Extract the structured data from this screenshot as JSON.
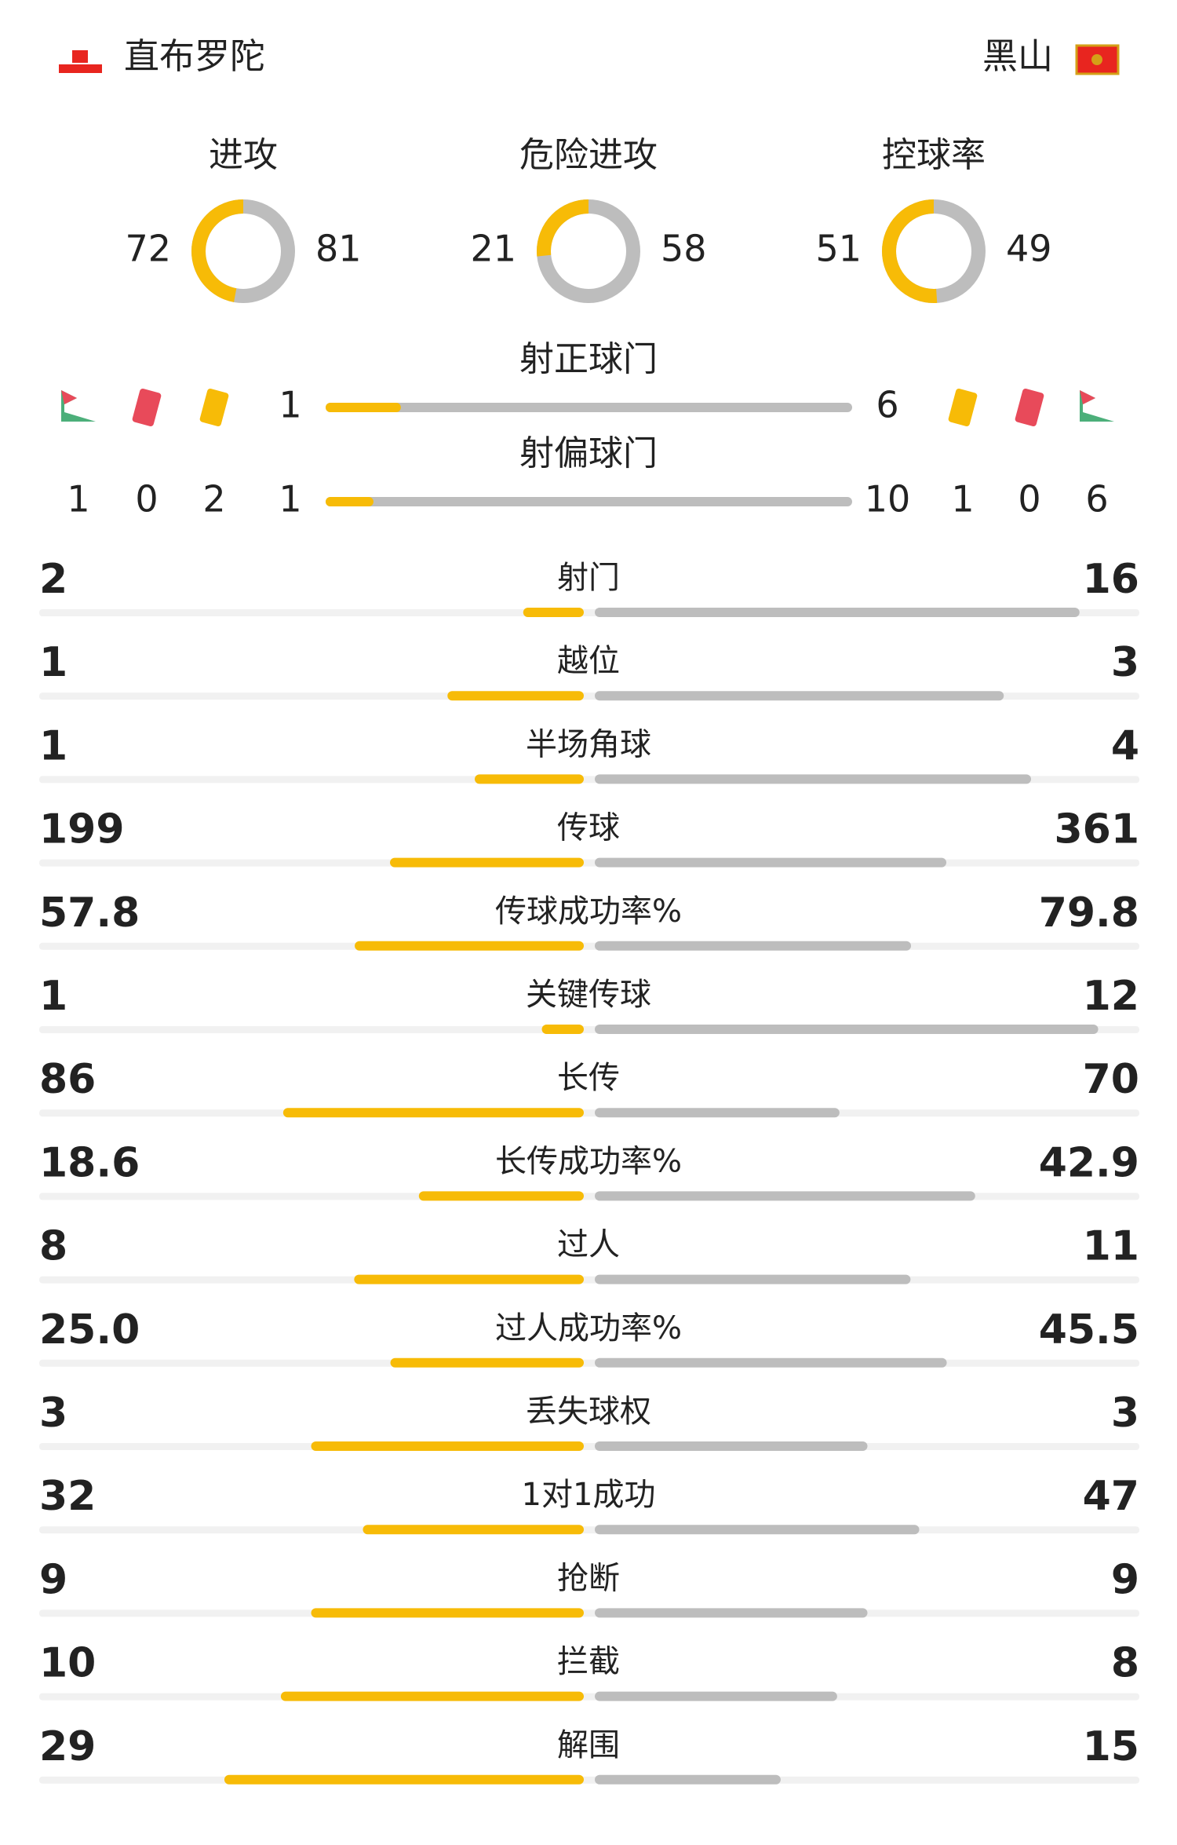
{
  "header": {
    "home_team": "直布罗陀",
    "away_team": "黑山"
  },
  "donuts": [
    {
      "label": "进攻",
      "home": 72,
      "away": 81
    },
    {
      "label": "危险进攻",
      "home": 21,
      "away": 58
    },
    {
      "label": "控球率",
      "home": 51,
      "away": 49
    }
  ],
  "shots": [
    {
      "label": "射正球门",
      "home": 1,
      "away": 6
    },
    {
      "label": "射偏球门",
      "home": 1,
      "away": 10
    }
  ],
  "events": {
    "home": {
      "corners": 1,
      "red": 0,
      "yellow": 2
    },
    "away": {
      "yellow": 1,
      "red": 0,
      "corners": 6
    }
  },
  "rows": [
    {
      "label": "射门",
      "home": 2,
      "away": 16
    },
    {
      "label": "越位",
      "home": 1,
      "away": 3
    },
    {
      "label": "半场角球",
      "home": 1,
      "away": 4
    },
    {
      "label": "传球",
      "home": 199,
      "away": 361
    },
    {
      "label": "传球成功率%",
      "home": 57.8,
      "away": 79.8
    },
    {
      "label": "关键传球",
      "home": 1,
      "away": 12
    },
    {
      "label": "长传",
      "home": 86,
      "away": 70
    },
    {
      "label": "长传成功率%",
      "home": 18.6,
      "away": 42.9
    },
    {
      "label": "过人",
      "home": 8,
      "away": 11
    },
    {
      "label": "过人成功率%",
      "home": 25,
      "home_label": "25.0",
      "away": 45.5
    },
    {
      "label": "丢失球权",
      "home": 3,
      "away": 3
    },
    {
      "label": "1对1成功",
      "home": 32,
      "away": 47
    },
    {
      "label": "抢断",
      "home": 9,
      "away": 9
    },
    {
      "label": "拦截",
      "home": 10,
      "away": 8
    },
    {
      "label": "解围",
      "home": 29,
      "away": 15
    }
  ]
}
